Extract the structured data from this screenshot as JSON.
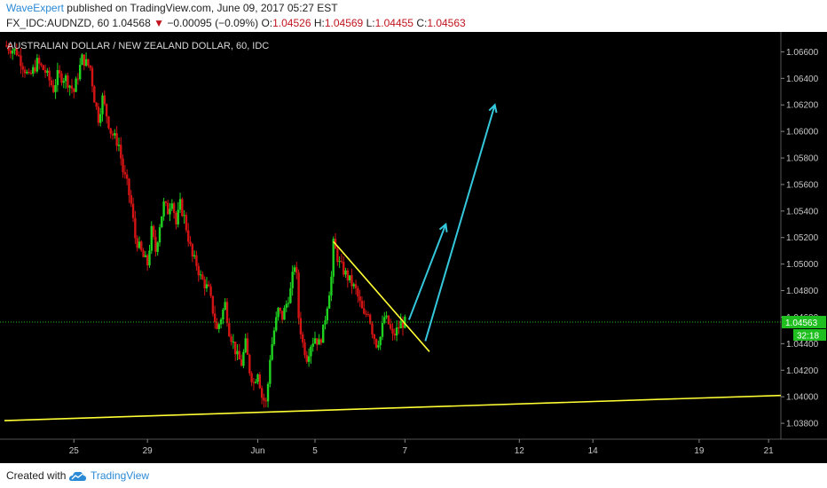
{
  "header": {
    "author": "WaveExpert",
    "published": "published on TradingView.com, June 09, 2017 05:27 EST",
    "symbol": "FX_IDC:AUDNZD, 60",
    "last": "1.04568",
    "change_arrow": "▼",
    "change": "−0.00095 (−0.09%)",
    "o_label": "O:",
    "o_value": "1.04526",
    "h_label": "H:",
    "h_value": "1.04569",
    "l_label": "L:",
    "l_value": "1.04455",
    "c_label": "C:",
    "c_value": "1.04563"
  },
  "footer": {
    "created_with": "Created with",
    "brand": "TradingView",
    "logo_icon": "tradingview-cloud-icon"
  },
  "chart_data": {
    "type": "candlestick",
    "title": "AUSTRALIAN DOLLAR / NEW ZEALAND DOLLAR, 60, IDC",
    "xlabel": "",
    "ylabel": "",
    "x_ticks": [
      "25",
      "29",
      "Jun",
      "5",
      "7",
      "12",
      "14",
      "19",
      "21"
    ],
    "y_ticks": [
      "1.03800",
      "1.04000",
      "1.04200",
      "1.04400",
      "1.04600",
      "1.04800",
      "1.05000",
      "1.05200",
      "1.05400",
      "1.05600",
      "1.05800",
      "1.06000",
      "1.06200",
      "1.06400",
      "1.06600"
    ],
    "ylim": [
      1.0368,
      1.0675
    ],
    "grid": false,
    "legend": "none",
    "price_label": "1.04563",
    "timer_label": "32:18",
    "price_line_value": 1.04563,
    "colors": {
      "background": "#000000",
      "up": "#1fd21f",
      "down": "#d41414",
      "support_line": "#ffff33",
      "projection": "#35c8dc",
      "price_line": "#1fbf1f",
      "axis_text": "#c8c8c8"
    },
    "price_path": [
      [
        0,
        1.0665
      ],
      [
        3,
        1.066
      ],
      [
        6,
        1.064
      ],
      [
        8,
        1.0652
      ],
      [
        10,
        1.0645
      ],
      [
        12,
        1.0632
      ],
      [
        13,
        1.0642
      ],
      [
        15,
        1.064
      ],
      [
        17,
        1.063
      ],
      [
        19,
        1.0655
      ],
      [
        21,
        1.0648
      ],
      [
        22,
        1.0625
      ],
      [
        23,
        1.061
      ],
      [
        24,
        1.0625
      ],
      [
        26,
        1.06
      ],
      [
        28,
        1.059
      ],
      [
        29,
        1.057
      ],
      [
        30,
        1.056
      ],
      [
        31,
        1.0545
      ],
      [
        32,
        1.052
      ],
      [
        34,
        1.0505
      ],
      [
        35,
        1.05
      ],
      [
        36,
        1.0525
      ],
      [
        37,
        1.051
      ],
      [
        38,
        1.053
      ],
      [
        39,
        1.0545
      ],
      [
        40,
        1.054
      ],
      [
        41,
        1.055
      ],
      [
        42,
        1.053
      ],
      [
        43,
        1.0545
      ],
      [
        44,
        1.0535
      ],
      [
        45,
        1.052
      ],
      [
        46,
        1.0505
      ],
      [
        47,
        1.05
      ],
      [
        48,
        1.049
      ],
      [
        49,
        1.0485
      ],
      [
        50,
        1.048
      ],
      [
        51,
        1.0465
      ],
      [
        52,
        1.045
      ],
      [
        53,
        1.046
      ],
      [
        54,
        1.047
      ],
      [
        55,
        1.045
      ],
      [
        56,
        1.044
      ],
      [
        57,
        1.043
      ],
      [
        58,
        1.0425
      ],
      [
        59,
        1.044
      ],
      [
        60,
        1.042
      ],
      [
        61,
        1.041
      ],
      [
        62,
        1.042
      ],
      [
        63,
        1.04
      ],
      [
        64,
        1.0395
      ],
      [
        64.5,
        1.041
      ],
      [
        65,
        1.043
      ],
      [
        66,
        1.045
      ],
      [
        67,
        1.0465
      ],
      [
        68,
        1.046
      ],
      [
        69,
        1.047
      ],
      [
        70,
        1.048
      ],
      [
        71,
        1.05
      ],
      [
        71.5,
        1.049
      ],
      [
        72,
        1.046
      ],
      [
        73,
        1.044
      ],
      [
        74,
        1.043
      ],
      [
        75,
        1.044
      ],
      [
        76,
        1.0445
      ],
      [
        77,
        1.044
      ],
      [
        78,
        1.045
      ],
      [
        79,
        1.047
      ],
      [
        80,
        1.049
      ],
      [
        80.5,
        1.0515
      ],
      [
        81,
        1.051
      ],
      [
        82,
        1.05
      ],
      [
        83,
        1.0495
      ],
      [
        84,
        1.049
      ],
      [
        85,
        1.0485
      ],
      [
        86,
        1.048
      ],
      [
        87,
        1.047
      ],
      [
        88,
        1.046
      ],
      [
        89,
        1.0465
      ],
      [
        90,
        1.045
      ],
      [
        91,
        1.044
      ],
      [
        92,
        1.0445
      ],
      [
        93,
        1.046
      ],
      [
        94,
        1.0455
      ],
      [
        95,
        1.0445
      ],
      [
        96,
        1.045
      ],
      [
        97,
        1.0455
      ],
      [
        98,
        1.0456
      ]
    ],
    "support_line": [
      [
        0,
        1.0382
      ],
      [
        190,
        1.0401
      ]
    ],
    "resistance_line": [
      [
        80.5,
        1.0517
      ],
      [
        104,
        1.0434
      ]
    ],
    "projection_arrows": [
      [
        [
          99,
          1.0458
        ],
        [
          108,
          1.053
        ]
      ],
      [
        [
          103,
          1.0442
        ],
        [
          120,
          1.062
        ]
      ]
    ]
  }
}
